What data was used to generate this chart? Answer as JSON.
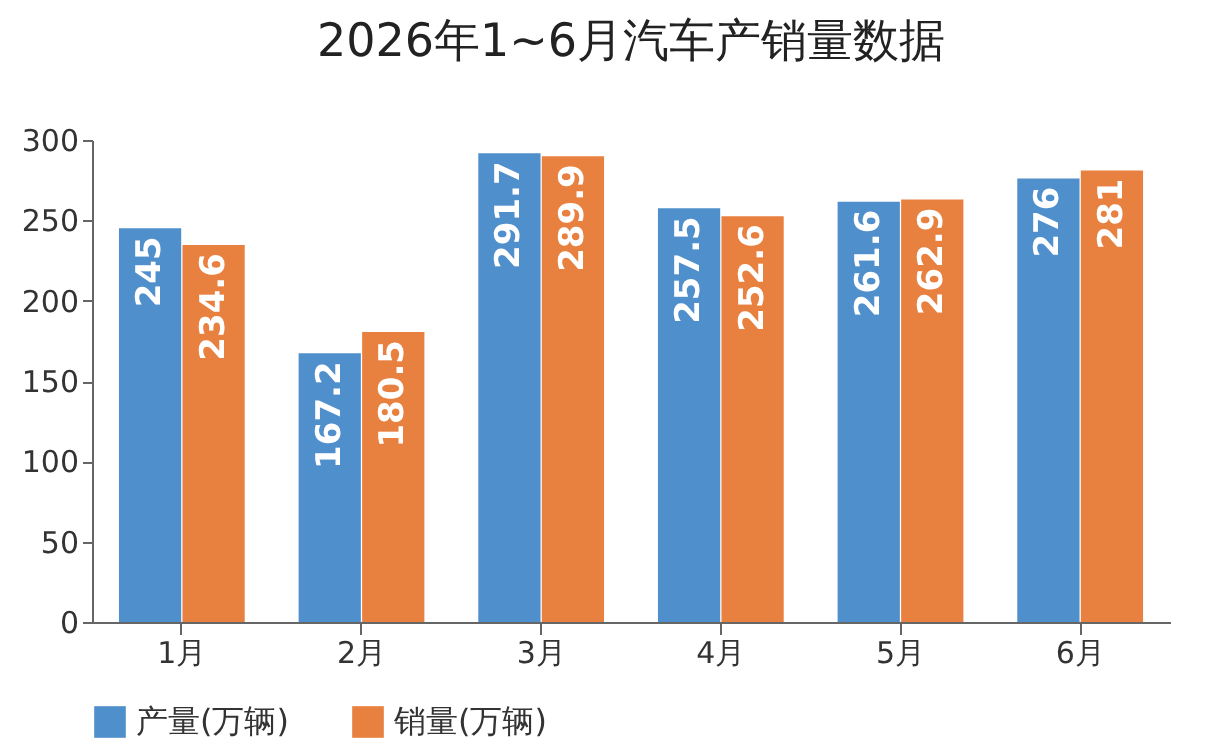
{
  "chart_data": {
    "type": "bar",
    "title": "2026年1~6月汽车产销量数据",
    "categories": [
      "1月",
      "2月",
      "3月",
      "4月",
      "5月",
      "6月"
    ],
    "series": [
      {
        "name": "产量(万辆)",
        "color": "#4f8fcb",
        "values": [
          245,
          167.2,
          291.7,
          257.5,
          261.6,
          276
        ]
      },
      {
        "name": "销量(万辆)",
        "color": "#e8803f",
        "values": [
          234.6,
          180.5,
          289.9,
          252.6,
          262.9,
          281
        ]
      }
    ],
    "ylim": [
      0,
      300
    ],
    "yticks": [
      0,
      50,
      100,
      150,
      200,
      250,
      300
    ],
    "grid": false,
    "legend": "bottom",
    "data_labels": true
  }
}
